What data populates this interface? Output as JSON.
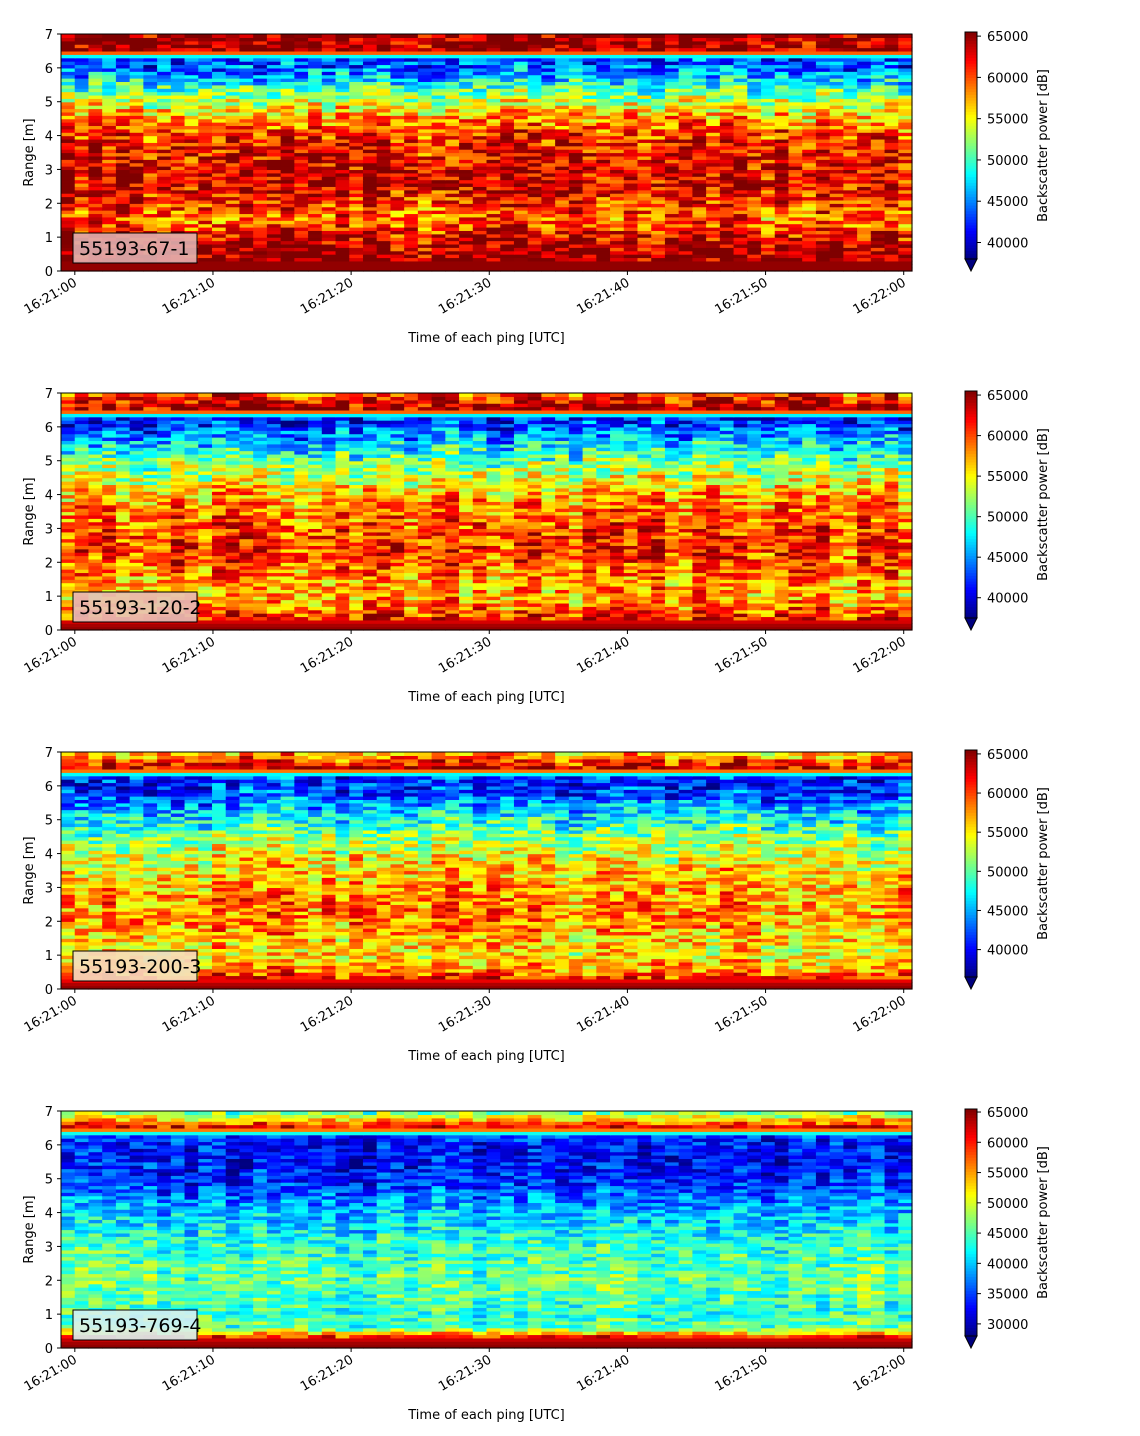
{
  "figure": {
    "colormap": "jet",
    "colormap_stops": [
      "#00007f",
      "#0000ff",
      "#0080ff",
      "#00ffff",
      "#7fff7f",
      "#ffff00",
      "#ff8000",
      "#ff0000",
      "#7f0000"
    ]
  },
  "chart_data": [
    {
      "type": "heatmap",
      "label_box": "55193-67-1",
      "label_box_color": "#e0b0b0",
      "xlabel": "Time of each ping [UTC]",
      "ylabel": "Range [m]",
      "xticks": [
        "16:21:00",
        "16:21:10",
        "16:21:20",
        "16:21:30",
        "16:21:40",
        "16:21:50",
        "16:22:00"
      ],
      "xlim": [
        "16:20:59",
        "16:22:00"
      ],
      "ylim": [
        0,
        7
      ],
      "yticks": [
        0,
        1,
        2,
        3,
        4,
        5,
        6,
        7
      ],
      "colorbar_label": "Backscatter power [dB]",
      "colorbar_ticks": [
        40000,
        45000,
        50000,
        55000,
        60000,
        65000
      ],
      "clim": [
        38000,
        65500
      ],
      "profile": [
        {
          "range": 0.1,
          "value": 65000
        },
        {
          "range": 0.5,
          "value": 65000
        },
        {
          "range": 1.0,
          "value": 63000
        },
        {
          "range": 1.5,
          "value": 59000
        },
        {
          "range": 2.0,
          "value": 61000
        },
        {
          "range": 2.5,
          "value": 63000
        },
        {
          "range": 3.0,
          "value": 63000
        },
        {
          "range": 3.5,
          "value": 62000
        },
        {
          "range": 4.0,
          "value": 61000
        },
        {
          "range": 4.5,
          "value": 58000
        },
        {
          "range": 5.0,
          "value": 54000
        },
        {
          "range": 5.5,
          "value": 49000
        },
        {
          "range": 6.0,
          "value": 44000
        },
        {
          "range": 6.3,
          "value": 43000
        },
        {
          "range": 6.5,
          "value": 65000
        },
        {
          "range": 7.0,
          "value": 65000
        }
      ]
    },
    {
      "type": "heatmap",
      "label_box": "55193-120-2",
      "label_box_color": "#e8c0b8",
      "xlabel": "Time of each ping [UTC]",
      "ylabel": "Range [m]",
      "xticks": [
        "16:21:00",
        "16:21:10",
        "16:21:20",
        "16:21:30",
        "16:21:40",
        "16:21:50",
        "16:22:00"
      ],
      "xlim": [
        "16:20:59",
        "16:22:00"
      ],
      "ylim": [
        0,
        7
      ],
      "yticks": [
        0,
        1,
        2,
        3,
        4,
        5,
        6,
        7
      ],
      "colorbar_label": "Backscatter power [dB]",
      "colorbar_ticks": [
        40000,
        45000,
        50000,
        55000,
        60000,
        65000
      ],
      "clim": [
        37500,
        65500
      ],
      "profile": [
        {
          "range": 0.1,
          "value": 65000
        },
        {
          "range": 0.5,
          "value": 60000
        },
        {
          "range": 1.0,
          "value": 57000
        },
        {
          "range": 1.5,
          "value": 58000
        },
        {
          "range": 2.0,
          "value": 60000
        },
        {
          "range": 2.5,
          "value": 61000
        },
        {
          "range": 3.0,
          "value": 60000
        },
        {
          "range": 3.5,
          "value": 59000
        },
        {
          "range": 4.0,
          "value": 57000
        },
        {
          "range": 4.5,
          "value": 54000
        },
        {
          "range": 5.0,
          "value": 51000
        },
        {
          "range": 5.5,
          "value": 47000
        },
        {
          "range": 6.0,
          "value": 43000
        },
        {
          "range": 6.3,
          "value": 42000
        },
        {
          "range": 6.5,
          "value": 65000
        },
        {
          "range": 7.0,
          "value": 60000
        }
      ]
    },
    {
      "type": "heatmap",
      "label_box": "55193-200-3",
      "label_box_color": "#f6dcc0",
      "xlabel": "Time of each ping [UTC]",
      "ylabel": "Range [m]",
      "xticks": [
        "16:21:00",
        "16:21:10",
        "16:21:20",
        "16:21:30",
        "16:21:40",
        "16:21:50",
        "16:22:00"
      ],
      "xlim": [
        "16:20:59",
        "16:22:00"
      ],
      "ylim": [
        0,
        7
      ],
      "yticks": [
        0,
        1,
        2,
        3,
        4,
        5,
        6,
        7
      ],
      "colorbar_label": "Backscatter power [dB]",
      "colorbar_ticks": [
        40000,
        45000,
        50000,
        55000,
        60000,
        65000
      ],
      "clim": [
        36500,
        65500
      ],
      "profile": [
        {
          "range": 0.1,
          "value": 65000
        },
        {
          "range": 0.5,
          "value": 58000
        },
        {
          "range": 1.0,
          "value": 55000
        },
        {
          "range": 1.5,
          "value": 56000
        },
        {
          "range": 2.0,
          "value": 58000
        },
        {
          "range": 2.5,
          "value": 58000
        },
        {
          "range": 3.0,
          "value": 57000
        },
        {
          "range": 3.5,
          "value": 56000
        },
        {
          "range": 4.0,
          "value": 54000
        },
        {
          "range": 4.5,
          "value": 51000
        },
        {
          "range": 5.0,
          "value": 48000
        },
        {
          "range": 5.5,
          "value": 44000
        },
        {
          "range": 6.0,
          "value": 41000
        },
        {
          "range": 6.3,
          "value": 42000
        },
        {
          "range": 6.5,
          "value": 64000
        },
        {
          "range": 7.0,
          "value": 56000
        }
      ]
    },
    {
      "type": "heatmap",
      "label_box": "55193-769-4",
      "label_box_color": "#d8f0f0",
      "xlabel": "Time of each ping [UTC]",
      "ylabel": "Range [m]",
      "xticks": [
        "16:21:00",
        "16:21:10",
        "16:21:20",
        "16:21:30",
        "16:21:40",
        "16:21:50",
        "16:22:00"
      ],
      "xlim": [
        "16:20:59",
        "16:22:00"
      ],
      "ylim": [
        0,
        7
      ],
      "yticks": [
        0,
        1,
        2,
        3,
        4,
        5,
        6,
        7
      ],
      "colorbar_label": "Backscatter power [dB]",
      "colorbar_ticks": [
        30000,
        35000,
        40000,
        45000,
        50000,
        55000,
        60000,
        65000
      ],
      "clim": [
        28000,
        65500
      ],
      "profile": [
        {
          "range": 0.1,
          "value": 65000
        },
        {
          "range": 0.3,
          "value": 62000
        },
        {
          "range": 0.6,
          "value": 46000
        },
        {
          "range": 1.0,
          "value": 44000
        },
        {
          "range": 1.5,
          "value": 45000
        },
        {
          "range": 2.0,
          "value": 46000
        },
        {
          "range": 2.5,
          "value": 45000
        },
        {
          "range": 3.0,
          "value": 44000
        },
        {
          "range": 3.5,
          "value": 42000
        },
        {
          "range": 4.0,
          "value": 40000
        },
        {
          "range": 4.5,
          "value": 37000
        },
        {
          "range": 5.0,
          "value": 34000
        },
        {
          "range": 5.5,
          "value": 33000
        },
        {
          "range": 6.0,
          "value": 33000
        },
        {
          "range": 6.3,
          "value": 36000
        },
        {
          "range": 6.5,
          "value": 63000
        },
        {
          "range": 7.0,
          "value": 45000
        }
      ]
    }
  ]
}
